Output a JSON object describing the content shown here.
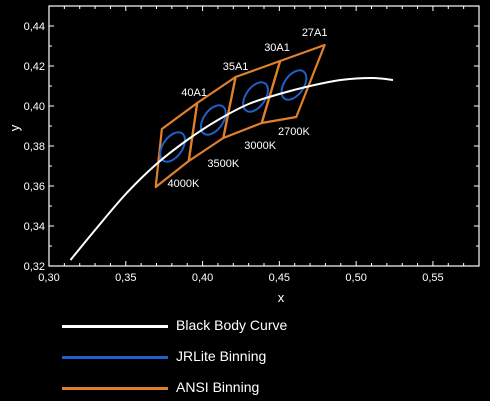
{
  "chart_data": {
    "type": "line",
    "title": "",
    "xlabel": "x",
    "ylabel": "y",
    "xlim": [
      0.3,
      0.58
    ],
    "ylim": [
      0.32,
      0.45
    ],
    "x_ticks": [
      "0,30",
      "0,35",
      "0,40",
      "0,45",
      "0,50",
      "0,55"
    ],
    "y_ticks": [
      "0,32",
      "0,34",
      "0,36",
      "0,38",
      "0,40",
      "0,42",
      "0,44"
    ],
    "grid": false,
    "legend_position": "bottom",
    "series": [
      {
        "name": "Black Body Curve",
        "color": "#ffffff",
        "points": [
          [
            0.314,
            0.323
          ],
          [
            0.33,
            0.338
          ],
          [
            0.35,
            0.356
          ],
          [
            0.37,
            0.371
          ],
          [
            0.39,
            0.383
          ],
          [
            0.41,
            0.393
          ],
          [
            0.43,
            0.401
          ],
          [
            0.45,
            0.406
          ],
          [
            0.47,
            0.41
          ],
          [
            0.49,
            0.413
          ],
          [
            0.51,
            0.414
          ],
          [
            0.524,
            0.413
          ]
        ]
      },
      {
        "name": "JRLite Binning",
        "color": "#1f5fc8",
        "ellipses": [
          {
            "cx": 0.3805,
            "cy": 0.3795,
            "rx": 0.0063,
            "ry": 0.0083
          },
          {
            "cx": 0.407,
            "cy": 0.393,
            "rx": 0.0063,
            "ry": 0.0083
          },
          {
            "cx": 0.4345,
            "cy": 0.4045,
            "rx": 0.0063,
            "ry": 0.0083
          },
          {
            "cx": 0.4595,
            "cy": 0.4105,
            "rx": 0.0063,
            "ry": 0.0083
          }
        ]
      },
      {
        "name": "ANSI Binning",
        "color": "#e0802c",
        "quads": [
          {
            "corners": [
              [
                0.3735,
                0.3885
              ],
              [
                0.3965,
                0.4015
              ],
              [
                0.391,
                0.3725
              ],
              [
                0.3695,
                0.3595
              ]
            ]
          },
          {
            "corners": [
              [
                0.3965,
                0.4015
              ],
              [
                0.4215,
                0.4145
              ],
              [
                0.4135,
                0.384
              ],
              [
                0.391,
                0.3725
              ]
            ]
          },
          {
            "corners": [
              [
                0.4215,
                0.4145
              ],
              [
                0.4505,
                0.4225
              ],
              [
                0.4385,
                0.3915
              ],
              [
                0.4135,
                0.384
              ]
            ]
          },
          {
            "corners": [
              [
                0.4505,
                0.4225
              ],
              [
                0.4795,
                0.4305
              ],
              [
                0.461,
                0.3945
              ],
              [
                0.4385,
                0.3915
              ]
            ]
          }
        ]
      }
    ],
    "annotations": [
      {
        "text": "40A1",
        "x": 0.3945,
        "y": 0.405
      },
      {
        "text": "35A1",
        "x": 0.4215,
        "y": 0.418
      },
      {
        "text": "30A1",
        "x": 0.4485,
        "y": 0.4275
      },
      {
        "text": "27A1",
        "x": 0.473,
        "y": 0.435
      },
      {
        "text": "4000K",
        "x": 0.3875,
        "y": 0.3595
      },
      {
        "text": "3500K",
        "x": 0.4135,
        "y": 0.3695
      },
      {
        "text": "3000K",
        "x": 0.4375,
        "y": 0.3785
      },
      {
        "text": "2700K",
        "x": 0.4595,
        "y": 0.3855
      }
    ]
  },
  "legend": [
    {
      "label": "Black Body Curve",
      "color": "#ffffff"
    },
    {
      "label": "JRLite Binning",
      "color": "#1f5fc8"
    },
    {
      "label": "ANSI Binning",
      "color": "#e0802c"
    }
  ]
}
